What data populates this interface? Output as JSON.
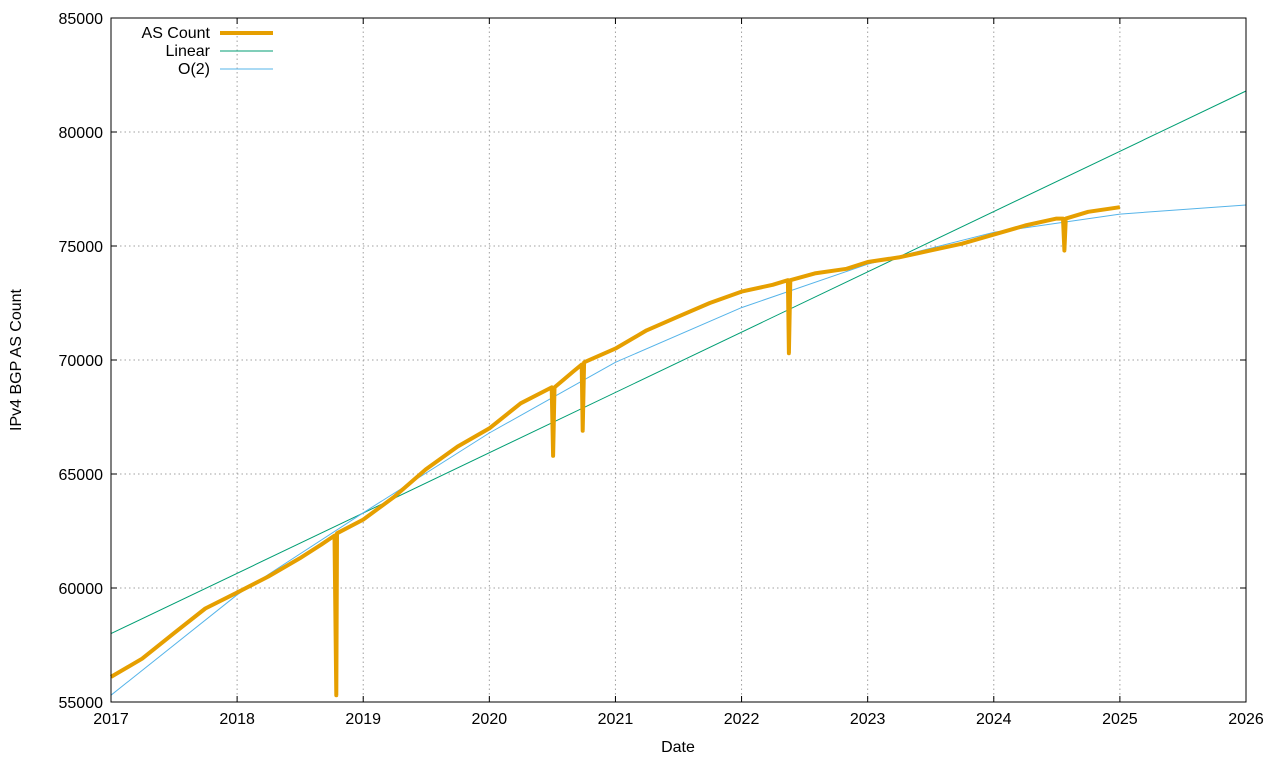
{
  "chart_data": {
    "type": "line",
    "xlabel": "Date",
    "ylabel": "IPv4 BGP AS Count",
    "x_ticks": [
      "2017",
      "2018",
      "2019",
      "2020",
      "2021",
      "2022",
      "2023",
      "2024",
      "2025",
      "2026"
    ],
    "y_ticks": [
      55000,
      60000,
      65000,
      70000,
      75000,
      80000,
      85000
    ],
    "xlim": [
      "2017",
      "2026"
    ],
    "ylim": [
      55000,
      85000
    ],
    "grid": true,
    "legend_position": "top-left",
    "colors": {
      "as_count": "#e69f00",
      "linear": "#009e73",
      "o2": "#56b4e9"
    },
    "series": [
      {
        "name": "AS Count",
        "points": [
          [
            "2017-01-01",
            56100
          ],
          [
            "2017-04-01",
            56900
          ],
          [
            "2017-07-01",
            58000
          ],
          [
            "2017-10-01",
            59100
          ],
          [
            "2018-01-01",
            59800
          ],
          [
            "2018-04-01",
            60500
          ],
          [
            "2018-07-01",
            61300
          ],
          [
            "2018-09-01",
            61900
          ],
          [
            "2018-10-10",
            62300
          ],
          [
            "2018-10-15",
            55300
          ],
          [
            "2018-10-17",
            62400
          ],
          [
            "2019-01-01",
            63000
          ],
          [
            "2019-04-01",
            64000
          ],
          [
            "2019-07-01",
            65200
          ],
          [
            "2019-10-01",
            66200
          ],
          [
            "2020-01-01",
            67000
          ],
          [
            "2020-04-01",
            68100
          ],
          [
            "2020-06-30",
            68800
          ],
          [
            "2020-07-04",
            65800
          ],
          [
            "2020-07-08",
            68800
          ],
          [
            "2020-09-01",
            69500
          ],
          [
            "2020-09-25",
            69800
          ],
          [
            "2020-09-28",
            66900
          ],
          [
            "2020-10-02",
            69900
          ],
          [
            "2021-01-01",
            70500
          ],
          [
            "2021-04-01",
            71300
          ],
          [
            "2021-07-01",
            71900
          ],
          [
            "2021-10-01",
            72500
          ],
          [
            "2022-01-01",
            73000
          ],
          [
            "2022-04-01",
            73300
          ],
          [
            "2022-05-15",
            73500
          ],
          [
            "2022-05-18",
            70300
          ],
          [
            "2022-05-22",
            73500
          ],
          [
            "2022-08-01",
            73800
          ],
          [
            "2022-11-01",
            74000
          ],
          [
            "2023-01-01",
            74300
          ],
          [
            "2023-04-01",
            74500
          ],
          [
            "2023-07-01",
            74800
          ],
          [
            "2023-10-01",
            75100
          ],
          [
            "2024-01-01",
            75500
          ],
          [
            "2024-04-01",
            75900
          ],
          [
            "2024-07-01",
            76200
          ],
          [
            "2024-07-20",
            76200
          ],
          [
            "2024-07-24",
            74800
          ],
          [
            "2024-07-28",
            76200
          ],
          [
            "2024-10-01",
            76500
          ],
          [
            "2025-01-01",
            76700
          ]
        ]
      },
      {
        "name": "Linear",
        "points": [
          [
            "2017-01-01",
            58000
          ],
          [
            "2026-01-01",
            81800
          ]
        ]
      },
      {
        "name": "O(2)",
        "points": [
          [
            "2017-01-01",
            55300
          ],
          [
            "2018-01-01",
            59700
          ],
          [
            "2019-01-01",
            63300
          ],
          [
            "2020-01-01",
            66800
          ],
          [
            "2021-01-01",
            69900
          ],
          [
            "2022-01-01",
            72300
          ],
          [
            "2023-01-01",
            74200
          ],
          [
            "2024-01-01",
            75600
          ],
          [
            "2025-01-01",
            76400
          ],
          [
            "2026-01-01",
            76800
          ]
        ]
      }
    ]
  }
}
